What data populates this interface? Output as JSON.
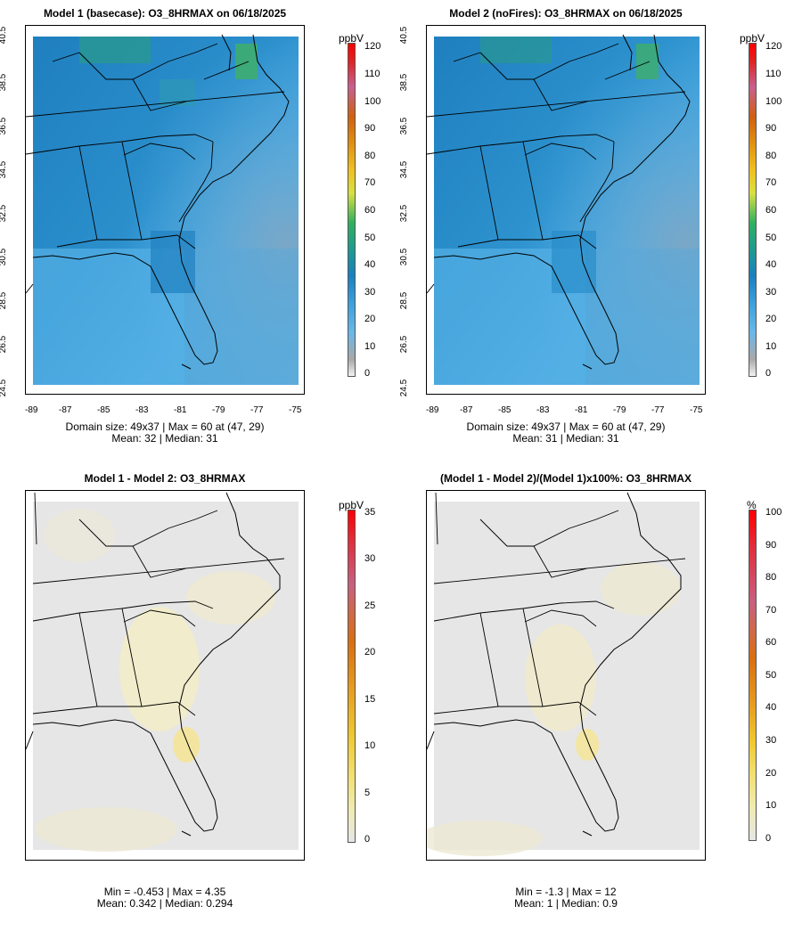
{
  "panels": [
    {
      "title": "Model 1 (basecase): O3_8HRMAX on 06/18/2025",
      "unit": "ppbV",
      "stats_line1": "Domain size: 49x37 | Max = 60 at (47, 29)",
      "stats_line2": "Mean: 32 |  Median: 31",
      "legend_ticks": [
        "0",
        "10",
        "20",
        "30",
        "40",
        "50",
        "60",
        "70",
        "80",
        "90",
        "100",
        "110",
        "120"
      ],
      "y_ticks": [
        "24.5",
        "26.5",
        "28.5",
        "30.5",
        "32.5",
        "34.5",
        "36.5",
        "38.5",
        "40.5"
      ],
      "x_ticks": [
        "-89",
        "-87",
        "-85",
        "-83",
        "-81",
        "-79",
        "-77",
        "-75"
      ]
    },
    {
      "title": "Model 2 (noFires): O3_8HRMAX on 06/18/2025",
      "unit": "ppbV",
      "stats_line1": "Domain size: 49x37 | Max = 60 at (47, 29)",
      "stats_line2": "Mean: 31 |  Median: 31",
      "legend_ticks": [
        "0",
        "10",
        "20",
        "30",
        "40",
        "50",
        "60",
        "70",
        "80",
        "90",
        "100",
        "110",
        "120"
      ],
      "y_ticks": [
        "24.5",
        "26.5",
        "28.5",
        "30.5",
        "32.5",
        "34.5",
        "36.5",
        "38.5",
        "40.5"
      ],
      "x_ticks": [
        "-89",
        "-87",
        "-85",
        "-83",
        "-81",
        "-79",
        "-77",
        "-75"
      ]
    },
    {
      "title": "Model 1 - Model 2: O3_8HRMAX",
      "unit": "ppbV",
      "stats_line1": "Min = -0.453 | Max = 4.35",
      "stats_line2": "Mean: 0.342 |  Median: 0.294",
      "legend_ticks": [
        "0",
        "5",
        "10",
        "15",
        "20",
        "25",
        "30",
        "35"
      ]
    },
    {
      "title": "(Model 1 - Model 2)/(Model 1)x100%: O3_8HRMAX",
      "unit": "%",
      "stats_line1": "Min = -1.3 | Max = 12",
      "stats_line2": "Mean: 1 |  Median: 0.9",
      "legend_ticks": [
        "0",
        "10",
        "20",
        "30",
        "40",
        "50",
        "60",
        "70",
        "80",
        "90",
        "100"
      ]
    }
  ],
  "colors": {
    "ozone_low": "#50b0e8",
    "ozone_mid": "#1f88c8",
    "ozone_high": "#2aa060",
    "ocean": "#7fb2d8",
    "diff_bg": "#e6e6e6",
    "diff_pos": "#f4eec0"
  }
}
